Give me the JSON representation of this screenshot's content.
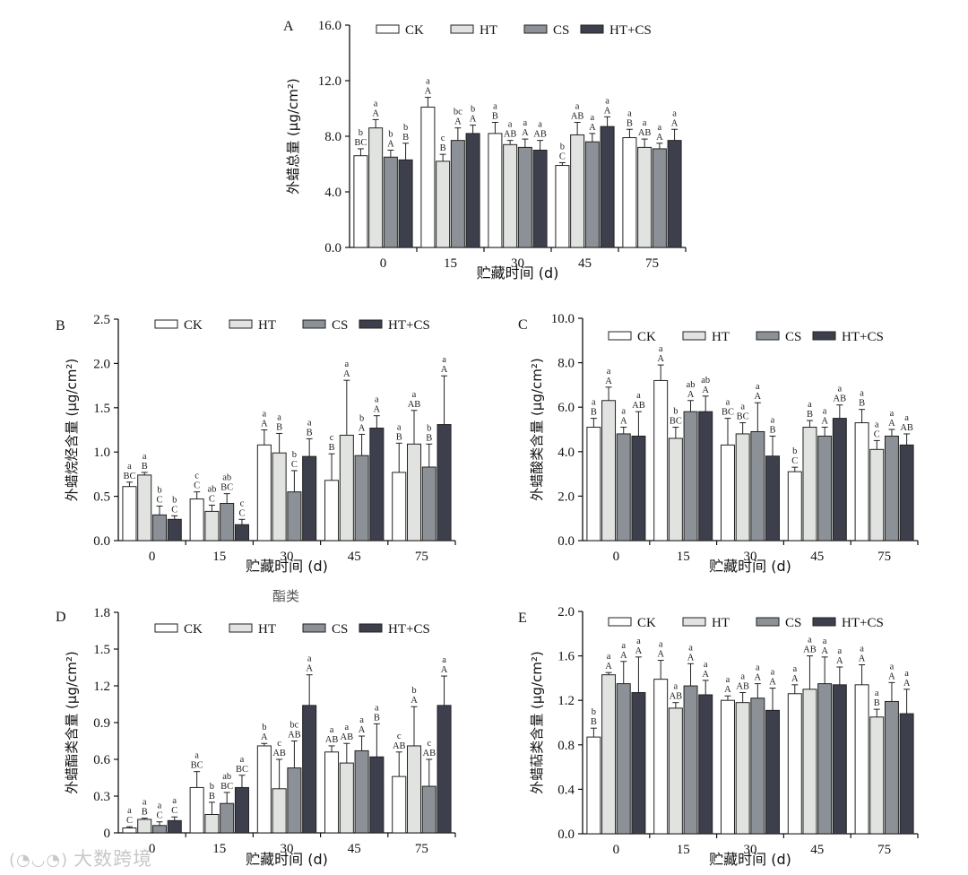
{
  "chart_data": [
    {
      "panel": "A",
      "type": "bar",
      "xlabel": "贮藏时间 (d)",
      "ylabel": "外蜡总量 (μg/cm²)",
      "categories": [
        "0",
        "15",
        "30",
        "45",
        "75"
      ],
      "ylim": [
        0,
        16
      ],
      "yticks": [
        "0.0",
        "4.0",
        "8.0",
        "12.0",
        "16.0"
      ],
      "legend": [
        "CK",
        "HT",
        "CS",
        "HT+CS"
      ],
      "series": [
        {
          "name": "CK",
          "color": "#ffffff",
          "values": [
            6.6,
            10.1,
            8.2,
            5.9,
            7.9
          ],
          "errors": [
            0.5,
            0.7,
            0.8,
            0.2,
            0.6
          ],
          "lower": [
            "b",
            "a",
            "a",
            "b",
            "a"
          ],
          "upper": [
            "BC",
            "A",
            "B",
            "C",
            "B"
          ]
        },
        {
          "name": "HT",
          "color": "#e0e3df",
          "values": [
            8.6,
            6.2,
            7.4,
            8.1,
            7.2
          ],
          "errors": [
            0.6,
            0.5,
            0.3,
            0.9,
            0.6
          ],
          "lower": [
            "a",
            "c",
            "a",
            "a",
            "a"
          ],
          "upper": [
            "A",
            "B",
            "AB",
            "AB",
            "AB"
          ]
        },
        {
          "name": "CS",
          "color": "#8c9197",
          "values": [
            6.5,
            7.7,
            7.2,
            7.6,
            7.1
          ],
          "errors": [
            0.5,
            0.9,
            0.6,
            0.6,
            0.4
          ],
          "lower": [
            "b",
            "bc",
            "a",
            "a",
            "a"
          ],
          "upper": [
            "A",
            "A",
            "A",
            "A",
            "A"
          ]
        },
        {
          "name": "HT+CS",
          "color": "#3d3f4c",
          "values": [
            6.3,
            8.2,
            7.0,
            8.7,
            7.7
          ],
          "errors": [
            1.2,
            0.6,
            0.7,
            0.7,
            0.8
          ],
          "lower": [
            "b",
            "b",
            "a",
            "a",
            "a"
          ],
          "upper": [
            "B",
            "A",
            "AB",
            "A",
            "A"
          ]
        }
      ]
    },
    {
      "panel": "B",
      "type": "bar",
      "xlabel": "贮藏时间 (d)",
      "ylabel": "外蜡烷烃含量 (μg/cm²)",
      "note": "酯类",
      "categories": [
        "0",
        "15",
        "30",
        "45",
        "75"
      ],
      "ylim": [
        0,
        2.5
      ],
      "yticks": [
        "0.0",
        "0.5",
        "1.0",
        "1.5",
        "2.0",
        "2.5"
      ],
      "legend": [
        "CK",
        "HT",
        "CS",
        "HT+CS"
      ],
      "series": [
        {
          "name": "CK",
          "color": "#ffffff",
          "values": [
            0.61,
            0.47,
            1.08,
            0.68,
            0.77
          ],
          "errors": [
            0.05,
            0.08,
            0.17,
            0.3,
            0.33
          ],
          "lower": [
            "a",
            "c",
            "a",
            "c",
            "a"
          ],
          "upper": [
            "BC",
            "C",
            "A",
            "B",
            "B"
          ]
        },
        {
          "name": "HT",
          "color": "#e0e3df",
          "values": [
            0.74,
            0.33,
            0.99,
            1.19,
            1.09
          ],
          "errors": [
            0.03,
            0.07,
            0.22,
            0.62,
            0.38
          ],
          "lower": [
            "a",
            "ab",
            "a",
            "a",
            "a"
          ],
          "upper": [
            "B",
            "C",
            "B",
            "A",
            "AB"
          ]
        },
        {
          "name": "CS",
          "color": "#8c9197",
          "values": [
            0.29,
            0.42,
            0.55,
            0.96,
            0.83
          ],
          "errors": [
            0.1,
            0.11,
            0.24,
            0.24,
            0.26
          ],
          "lower": [
            "b",
            "ab",
            "b",
            "b",
            "b"
          ],
          "upper": [
            "C",
            "BC",
            "C",
            "A",
            "B"
          ]
        },
        {
          "name": "HT+CS",
          "color": "#3d3f4c",
          "values": [
            0.24,
            0.18,
            0.95,
            1.27,
            1.31
          ],
          "errors": [
            0.04,
            0.06,
            0.2,
            0.14,
            0.55
          ],
          "lower": [
            "b",
            "c",
            "a",
            "a",
            "a"
          ],
          "upper": [
            "C",
            "C",
            "B",
            "A",
            "A"
          ]
        }
      ]
    },
    {
      "panel": "C",
      "type": "bar",
      "xlabel": "贮藏时间 (d)",
      "ylabel": "外蜡酸类含量 (μg/cm²)",
      "categories": [
        "0",
        "15",
        "30",
        "45",
        "75"
      ],
      "ylim": [
        0,
        10
      ],
      "yticks": [
        "0.0",
        "2.0",
        "4.0",
        "6.0",
        "8.0",
        "10.0"
      ],
      "legend": [
        "CK",
        "HT",
        "CS",
        "HT+CS"
      ],
      "series": [
        {
          "name": "CK",
          "color": "#ffffff",
          "values": [
            5.1,
            7.2,
            4.3,
            3.1,
            5.3
          ],
          "errors": [
            0.4,
            0.7,
            1.2,
            0.2,
            0.6
          ],
          "lower": [
            "a",
            "a",
            "a",
            "b",
            "a"
          ],
          "upper": [
            "B",
            "A",
            "BC",
            "C",
            "B"
          ]
        },
        {
          "name": "HT",
          "color": "#e0e3df",
          "values": [
            6.3,
            4.6,
            4.8,
            5.1,
            4.1
          ],
          "errors": [
            0.6,
            0.5,
            0.5,
            0.3,
            0.4
          ],
          "lower": [
            "a",
            "b",
            "a",
            "a",
            "a"
          ],
          "upper": [
            "A",
            "BC",
            "BC",
            "B",
            "C"
          ]
        },
        {
          "name": "CS",
          "color": "#8c9197",
          "values": [
            4.8,
            5.8,
            4.9,
            4.7,
            4.7
          ],
          "errors": [
            0.3,
            0.5,
            1.3,
            0.4,
            0.3
          ],
          "lower": [
            "a",
            "ab",
            "a",
            "a",
            "a"
          ],
          "upper": [
            "A",
            "A",
            "A",
            "A",
            "A"
          ]
        },
        {
          "name": "HT+CS",
          "color": "#3d3f4c",
          "values": [
            4.7,
            5.8,
            3.8,
            5.5,
            4.3
          ],
          "errors": [
            1.1,
            0.7,
            0.9,
            0.6,
            0.5
          ],
          "lower": [
            "a",
            "ab",
            "a",
            "a",
            "a"
          ],
          "upper": [
            "AB",
            "A",
            "B",
            "AB",
            "AB"
          ]
        }
      ]
    },
    {
      "panel": "D",
      "type": "bar",
      "xlabel": "贮藏时间 (d)",
      "ylabel": "外蜡酯类含量 (μg/cm²)",
      "categories": [
        "0",
        "15",
        "30",
        "45",
        "75"
      ],
      "ylim": [
        0,
        1.8
      ],
      "yticks": [
        "0",
        "0.3",
        "0.6",
        "0.9",
        "1.2",
        "1.5",
        "1.8"
      ],
      "legend": [
        "CK",
        "HT",
        "CS",
        "HT+CS"
      ],
      "series": [
        {
          "name": "CK",
          "color": "#ffffff",
          "values": [
            0.04,
            0.37,
            0.71,
            0.66,
            0.46
          ],
          "errors": [
            0.01,
            0.13,
            0.02,
            0.05,
            0.2
          ],
          "lower": [
            "a",
            "a",
            "b",
            "a",
            "c"
          ],
          "upper": [
            "C",
            "BC",
            "A",
            "AB",
            "AB"
          ]
        },
        {
          "name": "HT",
          "color": "#e0e3df",
          "values": [
            0.11,
            0.15,
            0.36,
            0.57,
            0.71
          ],
          "errors": [
            0.01,
            0.1,
            0.24,
            0.16,
            0.32
          ],
          "lower": [
            "a",
            "b",
            "c",
            "a",
            "b"
          ],
          "upper": [
            "B",
            "B",
            "AB",
            "AB",
            "A"
          ]
        },
        {
          "name": "CS",
          "color": "#8c9197",
          "values": [
            0.06,
            0.24,
            0.53,
            0.67,
            0.38
          ],
          "errors": [
            0.03,
            0.09,
            0.22,
            0.12,
            0.22
          ],
          "lower": [
            "a",
            "ab",
            "bc",
            "a",
            "c"
          ],
          "upper": [
            "C",
            "BC",
            "AB",
            "A",
            "AB"
          ]
        },
        {
          "name": "HT+CS",
          "color": "#3d3f4c",
          "values": [
            0.1,
            0.37,
            1.04,
            0.62,
            1.04
          ],
          "errors": [
            0.03,
            0.1,
            0.25,
            0.27,
            0.24
          ],
          "lower": [
            "a",
            "a",
            "a",
            "a",
            "a"
          ],
          "upper": [
            "C",
            "BC",
            "A",
            "B",
            "A"
          ]
        }
      ]
    },
    {
      "panel": "E",
      "type": "bar",
      "xlabel": "贮藏时间 (d)",
      "ylabel": "外蜡萜类含量 (μg/cm²)",
      "categories": [
        "0",
        "15",
        "30",
        "45",
        "75"
      ],
      "ylim": [
        0,
        2.0
      ],
      "yticks": [
        "0.0",
        "0.4",
        "0.8",
        "1.2",
        "1.6",
        "2.0"
      ],
      "legend": [
        "CK",
        "HT",
        "CS",
        "HT+CS"
      ],
      "series": [
        {
          "name": "CK",
          "color": "#ffffff",
          "values": [
            0.87,
            1.39,
            1.2,
            1.26,
            1.34
          ],
          "errors": [
            0.08,
            0.17,
            0.04,
            0.08,
            0.18
          ],
          "lower": [
            "b",
            "a",
            "a",
            "a",
            "a"
          ],
          "upper": [
            "B",
            "A",
            "A",
            "A",
            "A"
          ]
        },
        {
          "name": "HT",
          "color": "#e0e3df",
          "values": [
            1.43,
            1.13,
            1.18,
            1.3,
            1.05
          ],
          "errors": [
            0.02,
            0.05,
            0.09,
            0.3,
            0.07
          ],
          "lower": [
            "a",
            "a",
            "a",
            "a",
            "a"
          ],
          "upper": [
            "A",
            "AB",
            "AB",
            "AB",
            "B"
          ]
        },
        {
          "name": "CS",
          "color": "#8c9197",
          "values": [
            1.35,
            1.33,
            1.22,
            1.35,
            1.19
          ],
          "errors": [
            0.2,
            0.2,
            0.13,
            0.24,
            0.17
          ],
          "lower": [
            "a",
            "a",
            "a",
            "a",
            "a"
          ],
          "upper": [
            "A",
            "A",
            "A",
            "A",
            "A"
          ]
        },
        {
          "name": "HT+CS",
          "color": "#3d3f4c",
          "values": [
            1.27,
            1.25,
            1.11,
            1.34,
            1.08
          ],
          "errors": [
            0.32,
            0.13,
            0.2,
            0.16,
            0.22
          ],
          "lower": [
            "a",
            "a",
            "a",
            "a",
            "a"
          ],
          "upper": [
            "A",
            "A",
            "A",
            "A",
            "A"
          ]
        }
      ]
    }
  ],
  "watermark": {
    "text": "大数跨境",
    "logo": "(◔◡◔)"
  }
}
